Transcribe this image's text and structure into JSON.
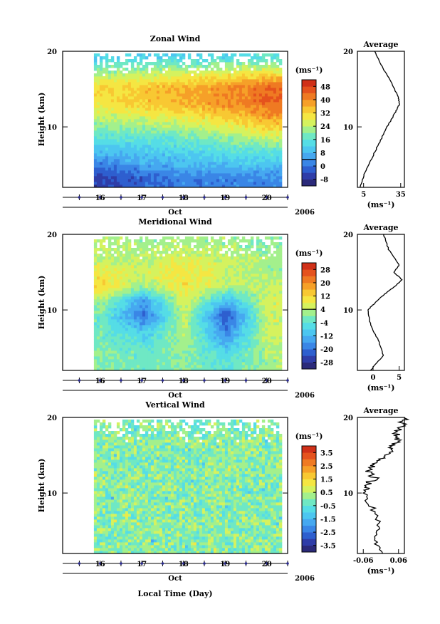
{
  "chart_data": [
    {
      "type": "heatmap",
      "title": "Zonal Wind",
      "ylabel": "Height (km)",
      "ylim": [
        2,
        20
      ],
      "yticks": [
        10,
        20
      ],
      "unit": "(ms⁻¹)",
      "xticks": [
        "16",
        "17",
        "18",
        "19",
        "20"
      ],
      "xlabel_month": "Oct",
      "year": "2006",
      "colorbar_ticks": [
        "48",
        "40",
        "32",
        "24",
        "16",
        "8",
        "0",
        "-8"
      ],
      "colorbar_range": [
        -12,
        52
      ],
      "z_rows_by_height_km": {
        "height": [
          3,
          5,
          7,
          9,
          11,
          13,
          15,
          17,
          19
        ],
        "t16": [
          -6,
          2,
          10,
          18,
          24,
          30,
          32,
          22,
          12
        ],
        "t17": [
          -2,
          6,
          12,
          18,
          26,
          34,
          34,
          24,
          14
        ],
        "t18": [
          2,
          8,
          14,
          20,
          28,
          36,
          36,
          26,
          12
        ],
        "t19": [
          2,
          10,
          16,
          24,
          32,
          40,
          40,
          28,
          14
        ],
        "t20": [
          2,
          10,
          18,
          28,
          38,
          44,
          44,
          30,
          16
        ]
      },
      "contour_label": "0",
      "average": {
        "title": "Average",
        "xlabel": "(ms⁻¹)",
        "xticks": [
          "5",
          "35"
        ],
        "xlim": [
          0,
          38
        ],
        "height": [
          2,
          4,
          6,
          8,
          10,
          12,
          13,
          14,
          16,
          18,
          20
        ],
        "value": [
          2,
          6,
          12,
          18,
          24,
          31,
          34,
          33,
          27,
          20,
          14
        ]
      }
    },
    {
      "type": "heatmap",
      "title": "Meridional Wind",
      "ylabel": "Height (km)",
      "ylim": [
        2,
        20
      ],
      "yticks": [
        10,
        20
      ],
      "unit": "(ms⁻¹)",
      "xticks": [
        "16",
        "17",
        "18",
        "19",
        "20"
      ],
      "xlabel_month": "Oct",
      "year": "2006",
      "colorbar_ticks": [
        "28",
        "20",
        "12",
        "4",
        "-4",
        "-12",
        "-20",
        "-28"
      ],
      "colorbar_range": [
        -32,
        32
      ],
      "z_rows_by_height_km": {
        "height": [
          3,
          5,
          7,
          9,
          11,
          13,
          15,
          17,
          19
        ],
        "t16": [
          0,
          0,
          -2,
          -2,
          2,
          12,
          8,
          4,
          4
        ],
        "t17": [
          -2,
          -4,
          -10,
          -20,
          -16,
          2,
          6,
          4,
          2
        ],
        "t18": [
          0,
          2,
          4,
          4,
          8,
          10,
          10,
          6,
          2
        ],
        "t19": [
          -4,
          -10,
          -18,
          -24,
          -12,
          4,
          6,
          4,
          2
        ],
        "t20": [
          2,
          4,
          6,
          6,
          6,
          4,
          2,
          2,
          0
        ]
      },
      "average": {
        "title": "Average",
        "xlabel": "(ms⁻¹)",
        "xticks": [
          "0",
          "5"
        ],
        "xlim": [
          -3,
          6
        ],
        "height": [
          2,
          4,
          6,
          8,
          10,
          11,
          12,
          13,
          14,
          15,
          16,
          18,
          20
        ],
        "value": [
          -0.5,
          2,
          1,
          -0.5,
          -1,
          0.5,
          2,
          4,
          5.5,
          4,
          5,
          3,
          2
        ]
      }
    },
    {
      "type": "heatmap",
      "title": "Vertical Wind",
      "ylabel": "Height (km)",
      "ylim": [
        2,
        20
      ],
      "yticks": [
        10,
        20
      ],
      "unit": "(ms⁻¹)",
      "xticks": [
        "16",
        "17",
        "18",
        "19",
        "20"
      ],
      "xlabel_month": "Oct",
      "year": "2006",
      "xlabel": "Local Time (Day)",
      "colorbar_ticks": [
        "3.5",
        "2.5",
        "1.5",
        "0.5",
        "-0.5",
        "-1.5",
        "-2.5",
        "-3.5"
      ],
      "colorbar_range": [
        -4,
        4
      ],
      "z_note": "values mostly between -0.5 and 0.5",
      "average": {
        "title": "Average",
        "xlabel": "(ms⁻¹)",
        "xticks": [
          "-0.06",
          "0.06"
        ],
        "xlim": [
          -0.08,
          0.08
        ],
        "height": [
          2,
          4,
          6,
          8,
          10,
          11,
          12,
          13,
          14,
          15,
          16,
          17,
          18,
          19,
          20
        ],
        "value": [
          0,
          -0.02,
          -0.01,
          -0.03,
          -0.06,
          -0.05,
          -0.02,
          -0.05,
          -0.01,
          0.02,
          0.04,
          0.06,
          0.05,
          0.07,
          0.08
        ]
      }
    }
  ]
}
